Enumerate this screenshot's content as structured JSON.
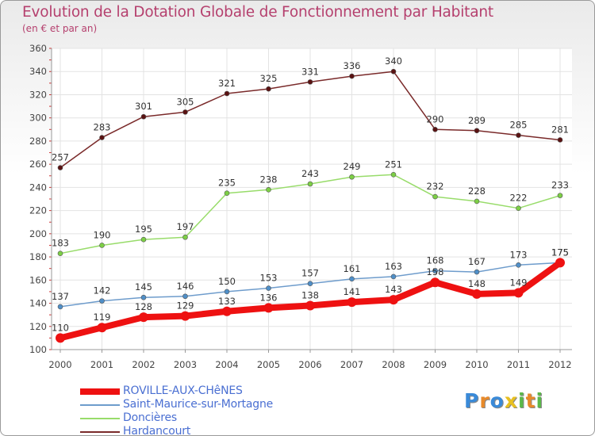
{
  "chart_data": {
    "type": "line",
    "title": "Evolution de la Dotation Globale de Fonctionnement par Habitant",
    "subtitle": "(en € et par an)",
    "xlabel": "",
    "ylabel": "",
    "ylim": [
      100,
      360
    ],
    "yticks": [
      100,
      120,
      140,
      160,
      180,
      200,
      220,
      240,
      260,
      280,
      300,
      320,
      340,
      360
    ],
    "categories": [
      "2000",
      "2001",
      "2002",
      "2003",
      "2004",
      "2005",
      "2006",
      "2007",
      "2008",
      "2009",
      "2010",
      "2011",
      "2012"
    ],
    "legend_position": "bottom-left",
    "series": [
      {
        "name": "ROVILLE-AUX-CHêNES",
        "color": "#ee1111",
        "values": [
          110,
          119,
          128,
          129,
          133,
          136,
          138,
          141,
          143,
          158,
          148,
          149,
          175
        ]
      },
      {
        "name": "Saint-Maurice-sur-Mortagne",
        "color": "#6e9ccc",
        "values": [
          137,
          142,
          145,
          146,
          150,
          153,
          157,
          161,
          163,
          168,
          167,
          173,
          175
        ]
      },
      {
        "name": "Doncières",
        "color": "#98dc6a",
        "values": [
          183,
          190,
          195,
          197,
          235,
          238,
          243,
          249,
          251,
          232,
          228,
          222,
          233
        ]
      },
      {
        "name": "Hardancourt",
        "color": "#7a2a2a",
        "values": [
          257,
          283,
          301,
          305,
          321,
          325,
          331,
          336,
          340,
          290,
          289,
          285,
          281
        ]
      }
    ]
  },
  "logo": {
    "letters": [
      "P",
      "r",
      "o",
      "x",
      "i",
      "t",
      "i"
    ],
    "colors": [
      "#3a8ad8",
      "#e88a2a",
      "#3a8ad8",
      "#e8c020",
      "#5bb84a",
      "#e88a2a",
      "#5bb84a"
    ]
  }
}
